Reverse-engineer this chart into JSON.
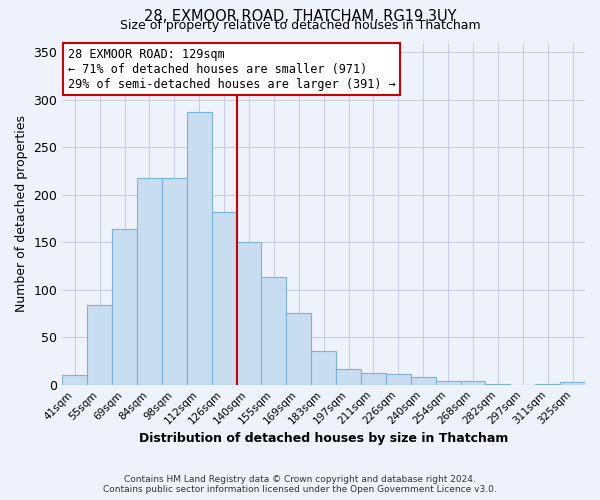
{
  "title": "28, EXMOOR ROAD, THATCHAM, RG19 3UY",
  "subtitle": "Size of property relative to detached houses in Thatcham",
  "xlabel": "Distribution of detached houses by size in Thatcham",
  "ylabel": "Number of detached properties",
  "bar_labels": [
    "41sqm",
    "55sqm",
    "69sqm",
    "84sqm",
    "98sqm",
    "112sqm",
    "126sqm",
    "140sqm",
    "155sqm",
    "169sqm",
    "183sqm",
    "197sqm",
    "211sqm",
    "226sqm",
    "240sqm",
    "254sqm",
    "268sqm",
    "282sqm",
    "297sqm",
    "311sqm",
    "325sqm"
  ],
  "bar_values": [
    10,
    84,
    164,
    217,
    217,
    287,
    182,
    150,
    113,
    75,
    35,
    17,
    12,
    11,
    8,
    4,
    4,
    1,
    0,
    1,
    3
  ],
  "bar_color": "#c9ddf0",
  "bar_edgecolor": "#7ab3d9",
  "vline_x": 6.5,
  "vline_color": "#cc0000",
  "ylim": [
    0,
    360
  ],
  "yticks": [
    0,
    50,
    100,
    150,
    200,
    250,
    300,
    350
  ],
  "annotation_title": "28 EXMOOR ROAD: 129sqm",
  "annotation_line1": "← 71% of detached houses are smaller (971)",
  "annotation_line2": "29% of semi-detached houses are larger (391) →",
  "annotation_box_facecolor": "#ffffff",
  "annotation_box_edgecolor": "#cc0000",
  "footer_line1": "Contains HM Land Registry data © Crown copyright and database right 2024.",
  "footer_line2": "Contains public sector information licensed under the Open Government Licence v3.0.",
  "background_color": "#eef2fa"
}
